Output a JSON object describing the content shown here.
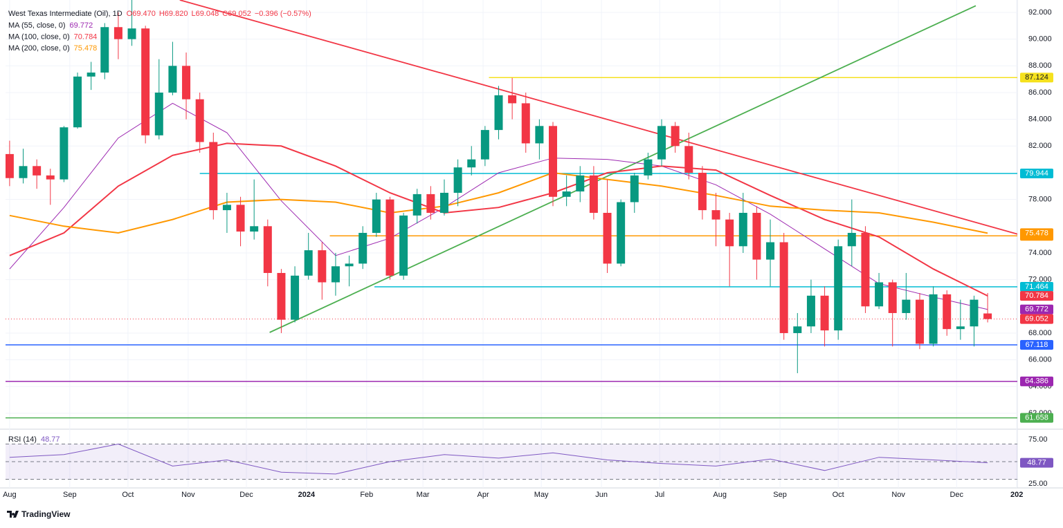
{
  "chart_data": {
    "type": "candlestick",
    "header": [
      "West Texas Intermediate (Oil), 1D",
      "O69.470",
      "H69.820",
      "L69.048",
      "C69.052",
      "−0.396 (−0.57%)"
    ],
    "x": [
      0,
      7,
      14,
      21,
      28,
      35,
      42,
      49,
      56,
      63,
      70,
      77,
      84,
      91,
      98,
      105,
      112,
      119,
      126,
      133,
      140,
      147,
      154,
      161,
      168,
      175,
      182,
      189,
      196,
      203,
      210,
      217,
      224,
      231,
      238,
      245,
      252,
      259,
      266,
      273,
      280,
      287,
      294,
      301,
      308,
      315,
      322,
      329,
      336,
      343,
      350,
      357,
      364,
      371,
      378,
      385,
      392,
      399,
      406,
      413,
      420,
      427,
      434,
      441,
      448,
      455,
      462,
      469,
      476,
      483,
      490,
      497,
      504
    ],
    "open": [
      81.4,
      79.6,
      80.5,
      79.8,
      79.5,
      83.4,
      87.2,
      87.5,
      90.9,
      90.0,
      90.8,
      82.8,
      86.0,
      88.0,
      85.5,
      82.3,
      77.2,
      77.6,
      75.6,
      76.0,
      72.5,
      69.0,
      72.3,
      74.2,
      71.8,
      73.0,
      73.2,
      75.5,
      78.0,
      72.3,
      76.8,
      78.4,
      77.0,
      78.5,
      80.4,
      81.0,
      83.2,
      85.8,
      85.2,
      82.2,
      83.5,
      78.2,
      78.6,
      79.8,
      77.0,
      73.2,
      77.8,
      79.8,
      81.0,
      83.5,
      82.0,
      80.0,
      77.2,
      76.5,
      74.5,
      77.0,
      73.5,
      74.8,
      68.0,
      68.5,
      70.8,
      68.2,
      74.5,
      75.5,
      70.0,
      71.8,
      69.5,
      70.5,
      67.2,
      70.9,
      68.3,
      68.5,
      69.47
    ],
    "high": [
      82.4,
      81.8,
      81.0,
      80.3,
      83.5,
      87.5,
      88.3,
      91.2,
      92.0,
      93.5,
      91.0,
      88.5,
      89.8,
      89.0,
      86.0,
      83.0,
      78.5,
      78.2,
      79.5,
      76.5,
      72.8,
      73.0,
      75.5,
      74.8,
      74.0,
      73.8,
      76.0,
      78.5,
      78.2,
      77.0,
      78.8,
      79.0,
      79.5,
      81.0,
      82.0,
      83.5,
      86.5,
      87.1,
      86.0,
      84.0,
      83.8,
      79.8,
      80.5,
      80.5,
      79.5,
      78.0,
      80.0,
      81.5,
      84.0,
      83.8,
      83.0,
      80.5,
      78.5,
      77.0,
      78.5,
      77.5,
      76.5,
      75.5,
      69.5,
      72.0,
      71.5,
      75.0,
      78.0,
      76.0,
      72.5,
      72.0,
      72.5,
      71.0,
      71.5,
      71.2,
      70.5,
      70.8,
      71.0
    ],
    "low": [
      79.0,
      79.2,
      78.8,
      77.6,
      79.3,
      83.3,
      86.2,
      87.0,
      88.5,
      89.5,
      82.2,
      82.5,
      85.8,
      84.0,
      81.5,
      76.5,
      75.5,
      74.5,
      75.0,
      71.5,
      68.0,
      68.8,
      72.0,
      70.5,
      70.8,
      71.5,
      72.8,
      75.2,
      72.0,
      72.0,
      76.2,
      76.5,
      76.8,
      77.5,
      79.8,
      80.5,
      82.5,
      84.0,
      81.5,
      81.0,
      77.5,
      77.5,
      77.8,
      76.5,
      72.5,
      73.0,
      77.0,
      79.5,
      80.5,
      81.5,
      79.5,
      76.5,
      74.5,
      71.5,
      74.0,
      72.0,
      71.5,
      67.5,
      65.0,
      68.0,
      67.0,
      67.5,
      73.0,
      69.5,
      69.8,
      67.0,
      69.0,
      66.8,
      67.0,
      67.8,
      67.5,
      67.0,
      68.8
    ],
    "close": [
      79.6,
      80.5,
      79.8,
      79.5,
      83.4,
      87.2,
      87.5,
      90.9,
      90.0,
      90.8,
      82.8,
      86.0,
      88.0,
      85.5,
      82.3,
      77.2,
      77.6,
      75.6,
      76.0,
      72.5,
      69.0,
      72.3,
      74.2,
      71.8,
      73.0,
      73.2,
      75.5,
      78.0,
      72.3,
      76.8,
      78.4,
      77.0,
      78.5,
      80.4,
      81.0,
      83.2,
      85.8,
      85.2,
      82.2,
      83.5,
      78.2,
      78.6,
      79.8,
      77.0,
      73.2,
      77.8,
      79.8,
      81.0,
      83.5,
      82.0,
      80.0,
      77.2,
      76.5,
      74.5,
      77.0,
      73.5,
      74.8,
      68.0,
      68.5,
      70.8,
      68.2,
      74.5,
      75.5,
      70.0,
      71.8,
      69.5,
      70.5,
      67.2,
      70.9,
      68.3,
      68.5,
      70.5,
      69.052
    ],
    "up_color": "#089981",
    "down_color": "#f23645",
    "series": [
      {
        "name": "MA (55, close, 0)",
        "color": "#9c27b0",
        "x": [
          0,
          28,
          56,
          84,
          112,
          140,
          168,
          196,
          224,
          252,
          280,
          308,
          336,
          364,
          392,
          420,
          448,
          476,
          504
        ],
        "values": [
          72.8,
          77.4,
          82.6,
          85.2,
          83.0,
          77.9,
          73.8,
          75.1,
          77.4,
          80.0,
          81.1,
          81.0,
          80.5,
          79.1,
          76.9,
          74.3,
          71.7,
          70.7,
          69.772
        ]
      },
      {
        "name": "MA (100, close, 0)",
        "color": "#f23645",
        "x": [
          0,
          28,
          56,
          84,
          112,
          140,
          168,
          196,
          224,
          252,
          280,
          308,
          336,
          364,
          392,
          420,
          448,
          476,
          504
        ],
        "values": [
          73.8,
          75.5,
          79.0,
          81.3,
          82.2,
          82.0,
          80.5,
          78.5,
          77.0,
          77.4,
          78.5,
          80.0,
          80.5,
          80.2,
          78.3,
          76.5,
          75.2,
          72.8,
          70.784
        ]
      },
      {
        "name": "MA (200, close, 0)",
        "color": "#ff9800",
        "x": [
          0,
          28,
          56,
          84,
          112,
          140,
          168,
          196,
          224,
          252,
          280,
          308,
          336,
          364,
          392,
          420,
          448,
          476,
          504
        ],
        "values": [
          76.8,
          76.0,
          75.5,
          76.5,
          77.8,
          78.0,
          77.8,
          77.0,
          77.5,
          78.5,
          80.0,
          79.5,
          79.0,
          78.3,
          77.5,
          77.2,
          77.0,
          76.3,
          75.478
        ]
      }
    ],
    "hlines": [
      {
        "value": 87.124,
        "color": "#f5e11e",
        "from": 247
      },
      {
        "value": 79.944,
        "color": "#00bcd4",
        "from": 98
      },
      {
        "value": 75.276,
        "color": "#ff9800",
        "from": 165
      },
      {
        "value": 71.464,
        "color": "#00bcd4",
        "from": 188
      },
      {
        "value": 67.118,
        "color": "#2962ff",
        "from": -2.1
      },
      {
        "value": 64.386,
        "color": "#9c27b0",
        "from": -2.1
      },
      {
        "value": 61.658,
        "color": "#4caf50",
        "from": -2.1
      }
    ],
    "trendlines": [
      {
        "color": "#f23645",
        "x": [
          87.7,
          542.8
        ],
        "y": [
          92.93,
          74.46
        ]
      },
      {
        "color": "#4caf50",
        "x": [
          134,
          497.9
        ],
        "y": [
          68.05,
          92.5
        ]
      }
    ],
    "last_price_color": "#f23645",
    "xlim": [
      -2.1,
      519.3
    ],
    "xticks": [
      {
        "value": 0,
        "label": "Aug"
      },
      {
        "value": 31,
        "label": "Sep"
      },
      {
        "value": 61,
        "label": "Oct"
      },
      {
        "value": 92,
        "label": "Nov"
      },
      {
        "value": 122,
        "label": "Dec"
      },
      {
        "value": 153,
        "label": "2024"
      },
      {
        "value": 184,
        "label": "Feb"
      },
      {
        "value": 213,
        "label": "Mar"
      },
      {
        "value": 244,
        "label": "Apr"
      },
      {
        "value": 274,
        "label": "May"
      },
      {
        "value": 305,
        "label": "Jun"
      },
      {
        "value": 335,
        "label": "Jul"
      },
      {
        "value": 366,
        "label": "Aug"
      },
      {
        "value": 397,
        "label": "Sep"
      },
      {
        "value": 427,
        "label": "Oct"
      },
      {
        "value": 458,
        "label": "Nov"
      },
      {
        "value": 488,
        "label": "Dec"
      },
      {
        "value": 519,
        "label": "202"
      }
    ],
    "ylim": [
      60.86,
      92.93
    ],
    "yticks": [
      {
        "value": 92,
        "label": "92.000"
      },
      {
        "value": 90,
        "label": "90.000"
      },
      {
        "value": 88,
        "label": "88.000"
      },
      {
        "value": 86,
        "label": "86.000"
      },
      {
        "value": 84,
        "label": "84.000"
      },
      {
        "value": 82,
        "label": "82.000"
      },
      {
        "value": 78,
        "label": "78.000"
      },
      {
        "value": 74,
        "label": "74.000"
      },
      {
        "value": 72,
        "label": "72.000"
      },
      {
        "value": 68,
        "label": "68.000"
      },
      {
        "value": 66,
        "label": "66.000"
      },
      {
        "value": 64,
        "label": "64.000"
      },
      {
        "value": 62,
        "label": "62.000"
      }
    ],
    "grid": true,
    "rsi": {
      "name": "RSI (14)",
      "color": "#7e57c2",
      "x": [
        0,
        28,
        56,
        84,
        112,
        140,
        168,
        196,
        224,
        252,
        280,
        308,
        336,
        364,
        392,
        420,
        448,
        476,
        504
      ],
      "values": [
        55,
        58,
        70,
        45,
        52,
        38,
        36,
        50,
        58,
        54,
        60,
        52,
        48,
        45,
        53,
        40,
        55,
        52,
        48.77
      ],
      "ylim": [
        21.0,
        86.1
      ],
      "yticks": [
        {
          "value": 75,
          "label": "75.00"
        },
        {
          "value": 25,
          "label": "25.00"
        }
      ],
      "levels": [
        30,
        50,
        70
      ]
    },
    "brand": "TradingView"
  }
}
